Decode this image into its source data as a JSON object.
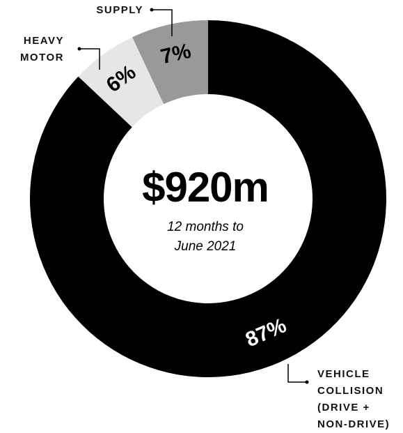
{
  "chart_data": {
    "type": "pie",
    "donut": true,
    "center_title": "$920m",
    "center_subtitle": [
      "12 months to",
      "June 2021"
    ],
    "categories": [
      [
        "VEHICLE",
        "COLLISION",
        "(DRIVE +",
        "NON-DRIVE)"
      ],
      [
        "HEAVY",
        "MOTOR"
      ],
      [
        "SUPPLY"
      ]
    ],
    "values": [
      87,
      6,
      7
    ],
    "value_labels": [
      "87%",
      "6%",
      "7%"
    ],
    "colors": [
      "#000000",
      "#e6e6e6",
      "#999999"
    ]
  }
}
